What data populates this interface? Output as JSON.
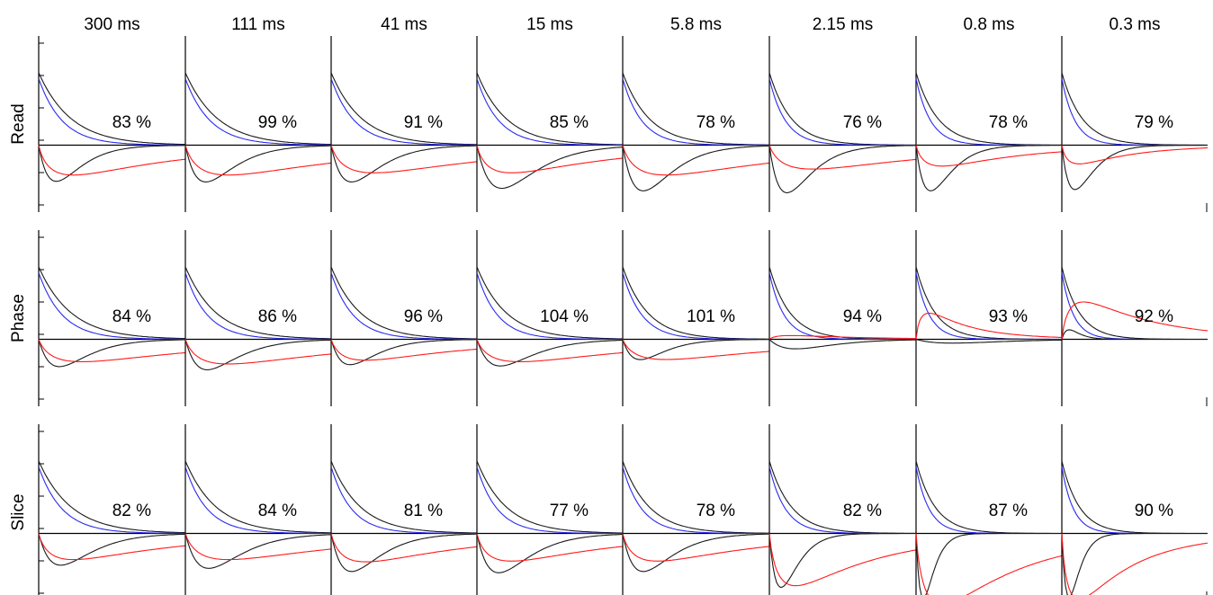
{
  "chart_data": {
    "type": "line",
    "title": "",
    "columns": [
      "300 ms",
      "111 ms",
      "41 ms",
      "15 ms",
      "5.8 ms",
      "2.15 ms",
      "0.8 ms",
      "0.3 ms"
    ],
    "rows": [
      "Read",
      "Phase",
      "Slice"
    ],
    "percentages": [
      [
        "83 %",
        "99 %",
        "91 %",
        "85 %",
        "78 %",
        "76 %",
        "78 %",
        "79 %"
      ],
      [
        "84 %",
        "86 %",
        "96 %",
        "104 %",
        "101 %",
        "94 %",
        "93 %",
        "92 %"
      ],
      [
        "82 %",
        "84 %",
        "81 %",
        "77 %",
        "78 %",
        "82 %",
        "87 %",
        "90 %"
      ]
    ],
    "ylim": [
      -1.3,
      1.5
    ],
    "xlim": [
      0,
      1
    ],
    "grid": false,
    "legend": "none",
    "series_colors": {
      "black_upper": "#1a1a1a",
      "blue": "#2a2af0",
      "black_lower": "#1a1a1a",
      "red": "#ff1a1a",
      "baseline": "#000000"
    },
    "panel_curve_params": [
      [
        {
          "upper_black_tau": 0.22,
          "upper_blue_tau": 0.16,
          "lower_black_depth": 0.57,
          "lower_black_peak": 0.12,
          "red_depth": 0.4,
          "red_peak": 0.08,
          "red_offset": 0.0
        },
        {
          "upper_black_tau": 0.22,
          "upper_blue_tau": 0.17,
          "lower_black_depth": 0.58,
          "lower_black_peak": 0.14,
          "red_depth": 0.4,
          "red_peak": 0.1,
          "red_offset": 0.0
        },
        {
          "upper_black_tau": 0.21,
          "upper_blue_tau": 0.16,
          "lower_black_depth": 0.58,
          "lower_black_peak": 0.14,
          "red_depth": 0.37,
          "red_peak": 0.1,
          "red_offset": 0.0
        },
        {
          "upper_black_tau": 0.2,
          "upper_blue_tau": 0.15,
          "lower_black_depth": 0.68,
          "lower_black_peak": 0.17,
          "red_depth": 0.37,
          "red_peak": 0.08,
          "red_offset": 0.0
        },
        {
          "upper_black_tau": 0.18,
          "upper_blue_tau": 0.13,
          "lower_black_depth": 0.72,
          "lower_black_peak": 0.14,
          "red_depth": 0.4,
          "red_peak": 0.1,
          "red_offset": 0.0
        },
        {
          "upper_black_tau": 0.15,
          "upper_blue_tau": 0.11,
          "lower_black_depth": 0.75,
          "lower_black_peak": 0.12,
          "red_depth": 0.32,
          "red_peak": 0.1,
          "red_offset": 0.0
        },
        {
          "upper_black_tau": 0.15,
          "upper_blue_tau": 0.1,
          "lower_black_depth": 0.72,
          "lower_black_peak": 0.1,
          "red_depth": 0.28,
          "red_peak": 0.06,
          "red_offset": 0.0
        },
        {
          "upper_black_tau": 0.14,
          "upper_blue_tau": 0.09,
          "lower_black_depth": 0.7,
          "lower_black_peak": 0.09,
          "red_depth": 0.25,
          "red_peak": 0.04,
          "red_offset": 0.0
        }
      ],
      [
        {
          "upper_black_tau": 0.22,
          "upper_blue_tau": 0.16,
          "lower_black_depth": 0.43,
          "lower_black_peak": 0.14,
          "red_depth": 0.3,
          "red_peak": 0.1,
          "red_offset": 0.0
        },
        {
          "upper_black_tau": 0.21,
          "upper_blue_tau": 0.15,
          "lower_black_depth": 0.48,
          "lower_black_peak": 0.15,
          "red_depth": 0.33,
          "red_peak": 0.1,
          "red_offset": 0.0
        },
        {
          "upper_black_tau": 0.2,
          "upper_blue_tau": 0.15,
          "lower_black_depth": 0.4,
          "lower_black_peak": 0.13,
          "red_depth": 0.28,
          "red_peak": 0.08,
          "red_offset": 0.0
        },
        {
          "upper_black_tau": 0.2,
          "upper_blue_tau": 0.14,
          "lower_black_depth": 0.42,
          "lower_black_peak": 0.16,
          "red_depth": 0.3,
          "red_peak": 0.1,
          "red_offset": 0.0
        },
        {
          "upper_black_tau": 0.17,
          "upper_blue_tau": 0.13,
          "lower_black_depth": 0.32,
          "lower_black_peak": 0.12,
          "red_depth": 0.27,
          "red_peak": 0.1,
          "red_offset": 0.0
        },
        {
          "upper_black_tau": 0.14,
          "upper_blue_tau": 0.1,
          "lower_black_depth": 0.15,
          "lower_black_peak": 0.18,
          "red_depth": -0.05,
          "red_peak": 0.05,
          "red_offset": 0.0
        },
        {
          "upper_black_tau": 0.13,
          "upper_blue_tau": 0.09,
          "lower_black_depth": 0.06,
          "lower_black_peak": 0.25,
          "red_depth": -0.35,
          "red_peak": 0.03,
          "red_offset": 0.0
        },
        {
          "upper_black_tau": 0.12,
          "upper_blue_tau": 0.08,
          "lower_black_depth": -0.15,
          "lower_black_peak": 0.05,
          "red_depth": -0.5,
          "red_peak": 0.05,
          "red_offset": 0.0
        }
      ],
      [
        {
          "upper_black_tau": 0.22,
          "upper_blue_tau": 0.16,
          "lower_black_depth": 0.5,
          "lower_black_peak": 0.15,
          "red_depth": 0.35,
          "red_peak": 0.08,
          "red_offset": 0.0
        },
        {
          "upper_black_tau": 0.21,
          "upper_blue_tau": 0.15,
          "lower_black_depth": 0.55,
          "lower_black_peak": 0.16,
          "red_depth": 0.35,
          "red_peak": 0.1,
          "red_offset": 0.0
        },
        {
          "upper_black_tau": 0.2,
          "upper_blue_tau": 0.14,
          "lower_black_depth": 0.6,
          "lower_black_peak": 0.14,
          "red_depth": 0.38,
          "red_peak": 0.08,
          "red_offset": 0.0
        },
        {
          "upper_black_tau": 0.2,
          "upper_blue_tau": 0.14,
          "lower_black_depth": 0.62,
          "lower_black_peak": 0.15,
          "red_depth": 0.37,
          "red_peak": 0.08,
          "red_offset": 0.0
        },
        {
          "upper_black_tau": 0.18,
          "upper_blue_tau": 0.13,
          "lower_black_depth": 0.6,
          "lower_black_peak": 0.14,
          "red_depth": 0.37,
          "red_peak": 0.08,
          "red_offset": 0.0
        },
        {
          "upper_black_tau": 0.15,
          "upper_blue_tau": 0.11,
          "lower_black_depth": 0.85,
          "lower_black_peak": 0.08,
          "red_depth": 0.7,
          "red_peak": 0.06,
          "red_offset": 0.0
        },
        {
          "upper_black_tau": 0.13,
          "upper_blue_tau": 0.09,
          "lower_black_depth": 1.02,
          "lower_black_peak": 0.05,
          "red_depth": 0.95,
          "red_peak": 0.06,
          "red_offset": 0.0
        },
        {
          "upper_black_tau": 0.12,
          "upper_blue_tau": 0.08,
          "lower_black_depth": 1.0,
          "lower_black_peak": 0.05,
          "red_depth": 0.88,
          "red_peak": 0.04,
          "red_offset": 0.0
        }
      ]
    ]
  }
}
